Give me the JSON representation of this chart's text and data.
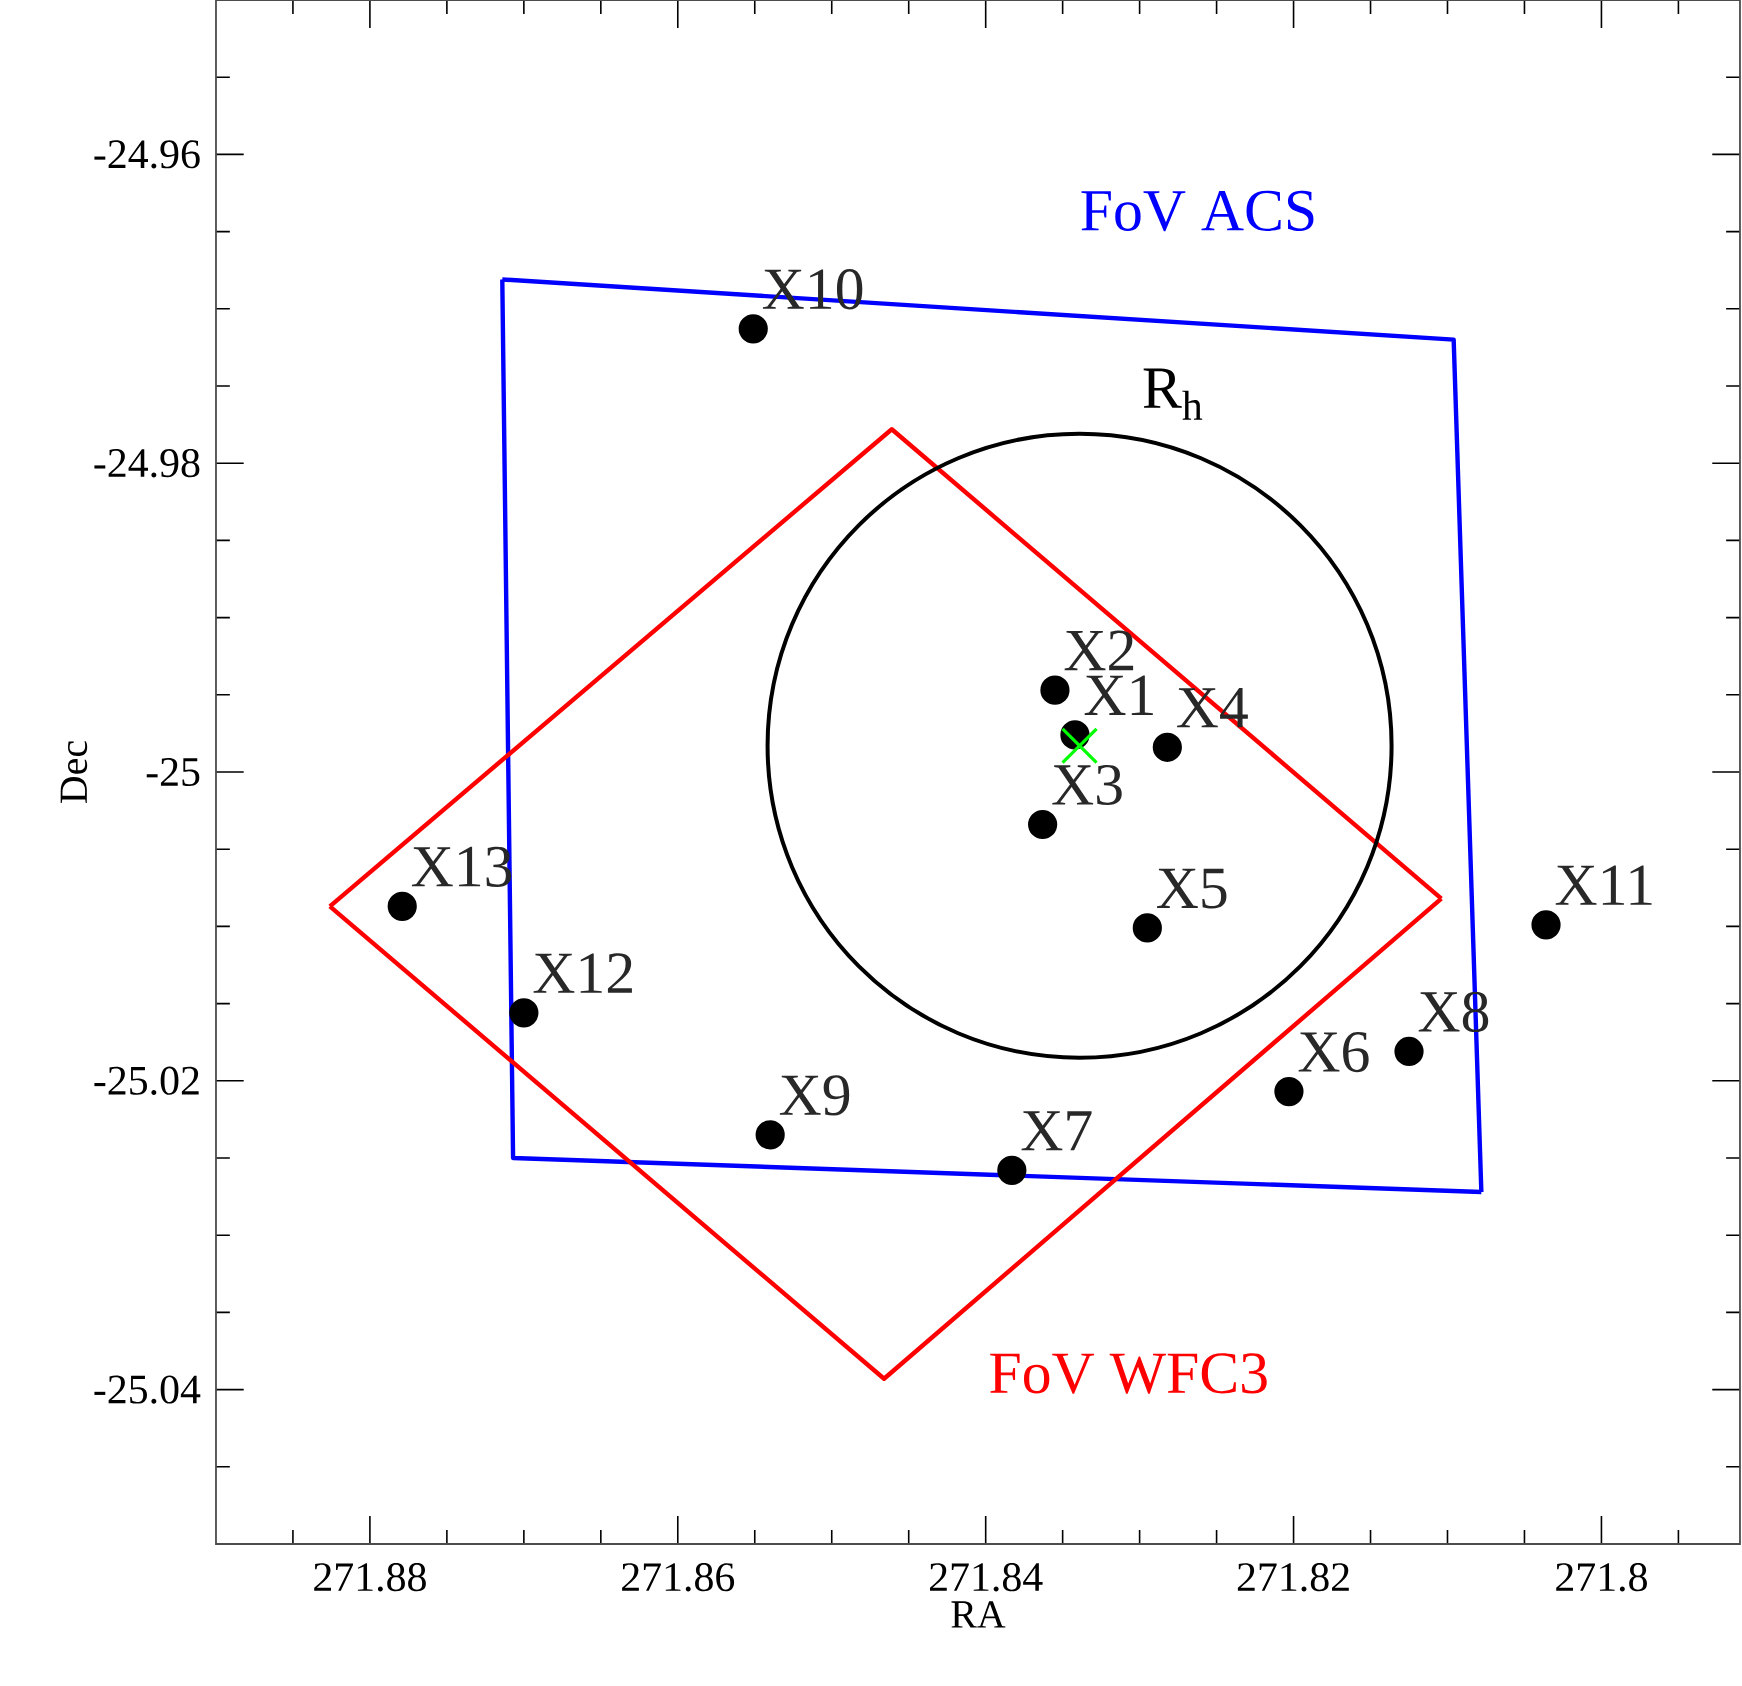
{
  "chart_data": {
    "type": "scatter",
    "xlabel": "RA",
    "ylabel": "Dec",
    "xlim": [
      271.89,
      271.791
    ],
    "ylim": [
      -25.05,
      -24.95
    ],
    "xticks": [
      271.88,
      271.86,
      271.84,
      271.82,
      271.8,
      {
        "value": 271.885,
        "label": null
      },
      {
        "value": 271.875,
        "label": null
      },
      {
        "value": 271.87,
        "label": null
      },
      {
        "value": 271.865,
        "label": null
      },
      {
        "value": 271.855,
        "label": null
      },
      {
        "value": 271.85,
        "label": null
      },
      {
        "value": 271.845,
        "label": null
      },
      {
        "value": 271.835,
        "label": null
      },
      {
        "value": 271.83,
        "label": null
      },
      {
        "value": 271.825,
        "label": null
      },
      {
        "value": 271.815,
        "label": null
      },
      {
        "value": 271.81,
        "label": null
      },
      {
        "value": 271.805,
        "label": null
      },
      {
        "value": 271.795,
        "label": null
      }
    ],
    "yticks": [
      -24.96,
      -24.98,
      -25,
      -25.02,
      -25.04,
      {
        "value": -24.955,
        "label": null
      },
      {
        "value": -24.965,
        "label": null
      },
      {
        "value": -24.97,
        "label": null
      },
      {
        "value": -24.975,
        "label": null
      },
      {
        "value": -24.985,
        "label": null
      },
      {
        "value": -24.99,
        "label": null
      },
      {
        "value": -24.995,
        "label": null
      },
      {
        "value": -25.005,
        "label": null
      },
      {
        "value": -25.01,
        "label": null
      },
      {
        "value": -25.015,
        "label": null
      },
      {
        "value": -25.025,
        "label": null
      },
      {
        "value": -25.03,
        "label": null
      },
      {
        "value": -25.035,
        "label": null
      },
      {
        "value": -25.045,
        "label": null
      }
    ],
    "series": [
      {
        "color": "#000000",
        "marker": "circle",
        "x": [
          271.8342,
          271.8355,
          271.8363,
          271.8282,
          271.8295,
          271.8203,
          271.8383,
          271.8125,
          271.854,
          271.8551,
          271.8036,
          271.87,
          271.8779
        ],
        "values": [
          -24.9976,
          -24.9947,
          -25.0034,
          -24.9984,
          -25.0101,
          -25.0207,
          -25.0258,
          -25.0181,
          -25.0235,
          -24.9713,
          -25.0099,
          -25.0156,
          -25.0087
        ]
      },
      {
        "type": "line",
        "name": "FoV ACS",
        "color": "#0000ff",
        "marker": "none",
        "x": [
          271.8714,
          271.8096,
          271.8078
        ],
        "values": [
          -24.9681,
          -24.972,
          -25.0272
        ]
      },
      {
        "type": "line",
        "color": "#0000ff",
        "marker": "none",
        "x": [
          271.8078,
          271.8707,
          271.8714
        ],
        "values": [
          -25.0272,
          -25.025,
          -24.9681
        ]
      },
      {
        "type": "line",
        "color": "#ff0000",
        "marker": "none",
        "x": [
          271.8826,
          271.8461,
          271.8104
        ],
        "values": [
          -25.0087,
          -24.9778,
          -25.0082
        ]
      },
      {
        "type": "line",
        "name": "FoV WFC3",
        "color": "#ff0000",
        "marker": "none",
        "x": [
          271.8104,
          271.8466,
          271.8826
        ],
        "values": [
          -25.0082,
          -25.0393,
          -25.0087
        ]
      },
      {
        "color": "#00ff00",
        "marker": "cross",
        "x": [
          271.8339
        ],
        "values": [
          -24.9983
        ]
      }
    ],
    "annotations": [
      {
        "text": "X1",
        "x": 271.8342,
        "y": -24.9976
      },
      {
        "text": "X2",
        "x": 271.8355,
        "y": -24.9947
      },
      {
        "text": "X3",
        "x": 271.8363,
        "y": -25.0034
      },
      {
        "text": "X4",
        "x": 271.8282,
        "y": -24.9984
      },
      {
        "text": "X5",
        "x": 271.8295,
        "y": -25.0101
      },
      {
        "text": "X6",
        "x": 271.8203,
        "y": -25.0207
      },
      {
        "text": "X7",
        "x": 271.8383,
        "y": -25.0258
      },
      {
        "text": "X8",
        "x": 271.8125,
        "y": -25.0181
      },
      {
        "text": "X9",
        "x": 271.854,
        "y": -25.0235
      },
      {
        "text": "X10",
        "x": 271.8551,
        "y": -24.9713
      },
      {
        "text": "X11",
        "x": 271.8036,
        "y": -25.0099
      },
      {
        "text": "X12",
        "x": 271.87,
        "y": -25.0156
      },
      {
        "text": "X13",
        "x": 271.8779,
        "y": -25.0087
      },
      "R$_{h}$"
    ]
  }
}
